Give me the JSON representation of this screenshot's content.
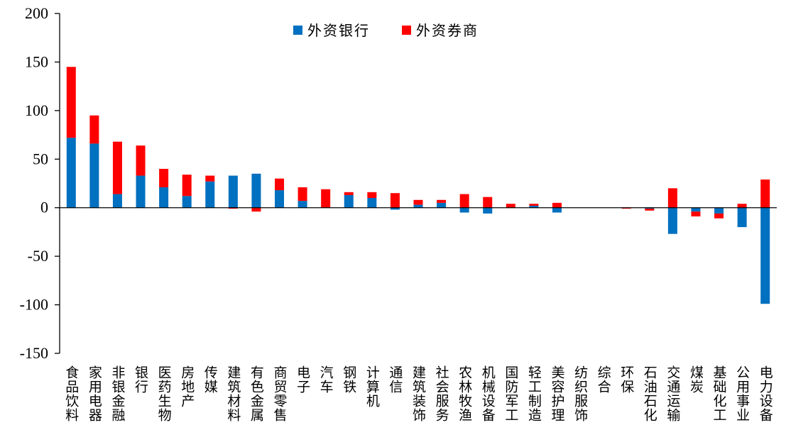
{
  "chart_data": {
    "type": "bar",
    "stacked": true,
    "categories": [
      "食品饮料",
      "家用电器",
      "非银金融",
      "银行",
      "医药生物",
      "房地产",
      "传媒",
      "建筑材料",
      "有色金属",
      "商贸零售",
      "电子",
      "汽车",
      "钢铁",
      "计算机",
      "通信",
      "建筑装饰",
      "社会服务",
      "农林牧渔",
      "机械设备",
      "国防军工",
      "轻工制造",
      "美容护理",
      "纺织服饰",
      "综合",
      "环保",
      "石油石化",
      "交通运输",
      "煤炭",
      "基础化工",
      "公用事业",
      "电力设备"
    ],
    "series": [
      {
        "name": "外资银行",
        "color": "#0070C0",
        "values": [
          72,
          66,
          14,
          33,
          21,
          12,
          27,
          33,
          35,
          18,
          7,
          0,
          13,
          10,
          -2,
          3,
          5,
          -5,
          -6,
          0,
          2,
          -5,
          0,
          0,
          0,
          -1,
          -27,
          -4,
          -6,
          -20,
          -99
        ]
      },
      {
        "name": "外资券商",
        "color": "#FF0000",
        "values": [
          73,
          29,
          54,
          31,
          19,
          22,
          6,
          -1,
          -4,
          12,
          14,
          19,
          3,
          6,
          15,
          5,
          3,
          14,
          11,
          4,
          2,
          5,
          0,
          0,
          -1,
          -2,
          20,
          -5,
          -5,
          4,
          29
        ]
      }
    ],
    "ylim": [
      -150,
      200
    ],
    "yticks": [
      200,
      150,
      100,
      50,
      0,
      -50,
      -100,
      -150
    ],
    "legend_position": "top-center",
    "grid": false
  }
}
